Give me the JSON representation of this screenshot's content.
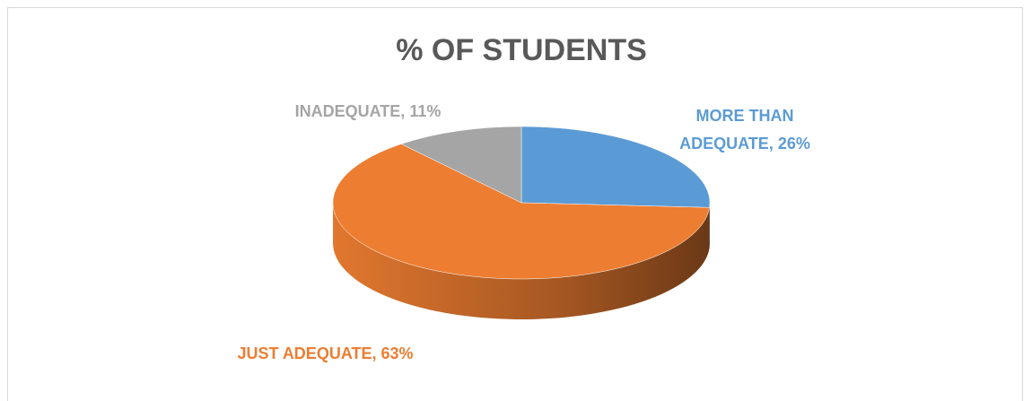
{
  "chart_data": {
    "type": "pie",
    "title": "% OF STUDENTS",
    "categories": [
      "MORE THAN ADEQUATE",
      "JUST ADEQUATE",
      "INADEQUATE"
    ],
    "values": [
      26,
      63,
      11
    ],
    "value_labels": [
      "26%",
      "63%",
      "11%"
    ],
    "colors": [
      "#5b9bd5",
      "#ed7d31",
      "#a5a5a5"
    ],
    "start_angle": -90,
    "three_d": true
  }
}
